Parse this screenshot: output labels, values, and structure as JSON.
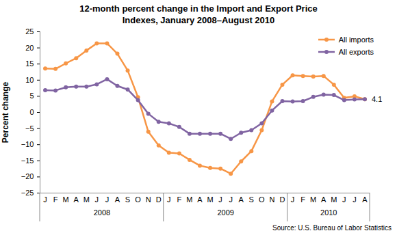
{
  "chart_data": {
    "type": "line",
    "title": "12-month percent change in the Import and Export Price Indexes, January 2008–August 2010",
    "y_label": "Percent change",
    "source": "Source: U.S. Bureau of Labor Statistics",
    "categories": [
      "J",
      "F",
      "M",
      "A",
      "M",
      "J",
      "J",
      "A",
      "S",
      "O",
      "N",
      "D",
      "J",
      "F",
      "M",
      "A",
      "M",
      "J",
      "J",
      "A",
      "S",
      "O",
      "N",
      "D",
      "J",
      "F",
      "M",
      "A",
      "M",
      "J",
      "J",
      "A"
    ],
    "category_groups": [
      "2008",
      "2008",
      "2008",
      "2008",
      "2008",
      "2008",
      "2008",
      "2008",
      "2008",
      "2008",
      "2008",
      "2008",
      "2009",
      "2009",
      "2009",
      "2009",
      "2009",
      "2009",
      "2009",
      "2009",
      "2009",
      "2009",
      "2009",
      "2009",
      "2010",
      "2010",
      "2010",
      "2010",
      "2010",
      "2010",
      "2010",
      "2010"
    ],
    "series": [
      {
        "name": "All imports",
        "color": "#f79646",
        "marker": "circle",
        "values": [
          13.6,
          13.5,
          15.2,
          16.8,
          19.2,
          21.4,
          21.4,
          18.2,
          13.0,
          4.7,
          -6.0,
          -10.2,
          -12.5,
          -12.7,
          -14.7,
          -16.5,
          -17.2,
          -17.4,
          -19.0,
          -15.2,
          -12.0,
          -5.5,
          3.4,
          8.6,
          11.5,
          11.3,
          11.1,
          11.3,
          8.6,
          4.5,
          5.0,
          4.1
        ]
      },
      {
        "name": "All exports",
        "color": "#8064a2",
        "marker": "circle",
        "values": [
          6.9,
          6.8,
          7.8,
          8.0,
          8.0,
          8.7,
          10.3,
          8.2,
          7.1,
          3.8,
          -0.4,
          -2.9,
          -3.4,
          -4.5,
          -6.6,
          -6.6,
          -6.6,
          -6.6,
          -8.2,
          -6.3,
          -5.5,
          -3.4,
          0.6,
          3.5,
          3.4,
          3.5,
          4.8,
          5.5,
          5.4,
          3.8,
          4.0,
          4.1
        ]
      }
    ],
    "ylim": [
      -25,
      25
    ],
    "yticks": [
      -25,
      -20,
      -15,
      -10,
      -5,
      0,
      5,
      10,
      15,
      20,
      25
    ],
    "grid": false,
    "legend": "upper right",
    "annotations": [
      {
        "text": "4.1",
        "value": 4.1
      }
    ]
  }
}
